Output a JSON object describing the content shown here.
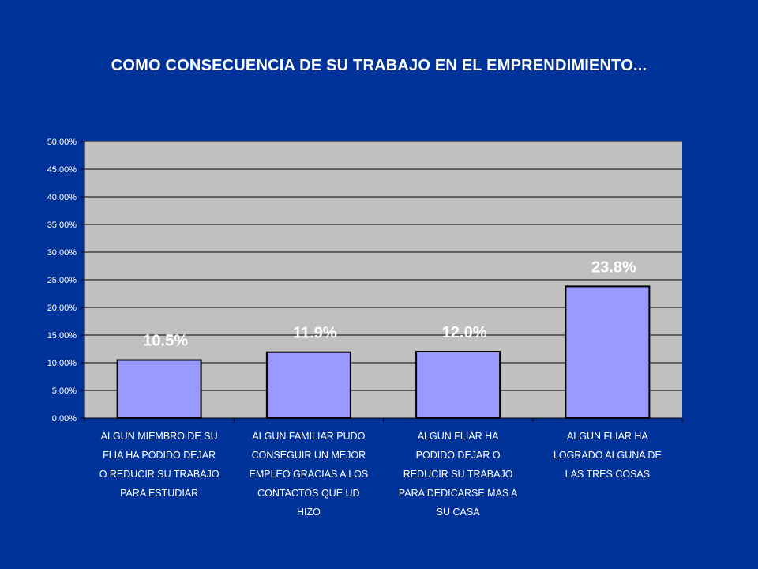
{
  "colors": {
    "background": "#003399",
    "plot_area": "#c0c0c0",
    "bar_fill": "#9999ff",
    "gridline": "#000000",
    "text": "#ffffff"
  },
  "chart_data": {
    "type": "bar",
    "title": "COMO CONSECUENCIA DE SU TRABAJO EN EL EMPRENDIMIENTO...",
    "xlabel": "",
    "ylabel": "",
    "ylim": [
      0,
      50
    ],
    "y_ticks": [
      "0.00%",
      "5.00%",
      "10.00%",
      "15.00%",
      "20.00%",
      "25.00%",
      "30.00%",
      "35.00%",
      "40.00%",
      "45.00%",
      "50.00%"
    ],
    "grid": true,
    "legend": "none",
    "categories": [
      [
        "ALGUN MIEMBRO DE SU",
        "FLIA HA PODIDO DEJAR",
        "O REDUCIR SU TRABAJO",
        "PARA ESTUDIAR"
      ],
      [
        "ALGUN FAMILIAR PUDO",
        "CONSEGUIR UN MEJOR",
        "EMPLEO GRACIAS A LOS",
        "CONTACTOS QUE UD",
        "HIZO"
      ],
      [
        "ALGUN FLIAR HA",
        "PODIDO DEJAR O",
        "REDUCIR SU TRABAJO",
        "PARA DEDICARSE MAS A",
        "SU CASA"
      ],
      [
        "ALGUN FLIAR HA",
        "LOGRADO ALGUNA DE",
        "LAS TRES COSAS"
      ]
    ],
    "values": [
      10.5,
      11.9,
      12.0,
      23.8
    ],
    "data_labels": [
      "10.5%",
      "11.9%",
      "12.0%",
      "23.8%"
    ]
  }
}
